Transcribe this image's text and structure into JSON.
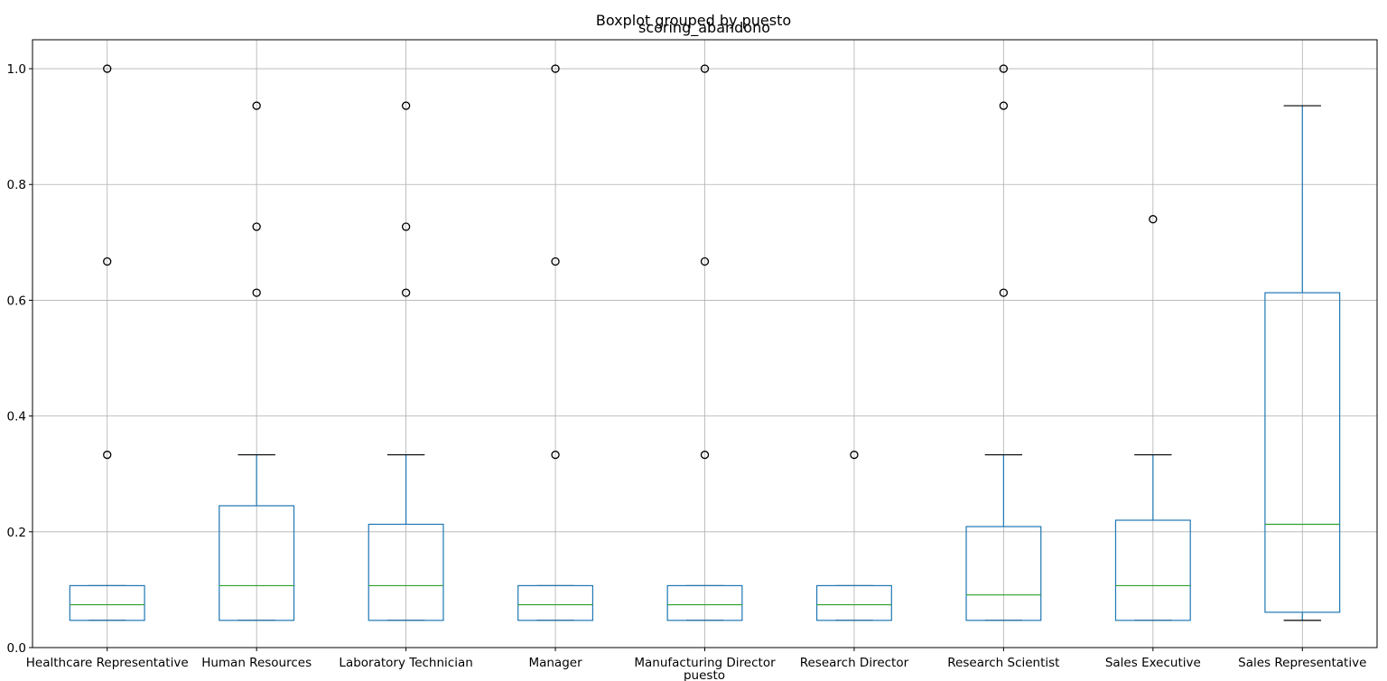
{
  "chart_data": {
    "type": "box",
    "title": "Boxplot grouped by puesto",
    "subtitle": "scoring_abandono",
    "xlabel": "puesto",
    "ylabel": "",
    "ylim": [
      0.0,
      1.05
    ],
    "yticks": [
      "0.0",
      "0.2",
      "0.4",
      "0.6",
      "0.8",
      "1.0"
    ],
    "grid": true,
    "colors": {
      "box": "#1f77b4",
      "median": "#2ca02c",
      "whisker_cap": "#000000",
      "grid": "#b0b0b0",
      "flier": "#000000"
    },
    "categories": [
      "Healthcare Representative",
      "Human Resources",
      "Laboratory Technician",
      "Manager",
      "Manufacturing Director",
      "Research Director",
      "Research Scientist",
      "Sales Executive",
      "Sales Representative"
    ],
    "boxes": [
      {
        "whislo": 0.047,
        "q1": 0.047,
        "med": 0.074,
        "q3": 0.107,
        "whishi": 0.107,
        "fliers": [
          0.333,
          0.667,
          1.0
        ]
      },
      {
        "whislo": 0.047,
        "q1": 0.047,
        "med": 0.107,
        "q3": 0.245,
        "whishi": 0.333,
        "fliers": [
          0.613,
          0.727,
          0.936
        ]
      },
      {
        "whislo": 0.047,
        "q1": 0.047,
        "med": 0.107,
        "q3": 0.213,
        "whishi": 0.333,
        "fliers": [
          0.613,
          0.727,
          0.936
        ]
      },
      {
        "whislo": 0.047,
        "q1": 0.047,
        "med": 0.074,
        "q3": 0.107,
        "whishi": 0.107,
        "fliers": [
          0.333,
          0.667,
          1.0
        ]
      },
      {
        "whislo": 0.047,
        "q1": 0.047,
        "med": 0.074,
        "q3": 0.107,
        "whishi": 0.107,
        "fliers": [
          0.333,
          0.667,
          1.0
        ]
      },
      {
        "whislo": 0.047,
        "q1": 0.047,
        "med": 0.074,
        "q3": 0.107,
        "whishi": 0.107,
        "fliers": [
          0.333
        ]
      },
      {
        "whislo": 0.047,
        "q1": 0.047,
        "med": 0.091,
        "q3": 0.209,
        "whishi": 0.333,
        "fliers": [
          0.613,
          0.936,
          1.0
        ]
      },
      {
        "whislo": 0.047,
        "q1": 0.047,
        "med": 0.107,
        "q3": 0.22,
        "whishi": 0.333,
        "fliers": [
          0.74
        ]
      },
      {
        "whislo": 0.047,
        "q1": 0.061,
        "med": 0.213,
        "q3": 0.613,
        "whishi": 0.936,
        "fliers": []
      }
    ]
  }
}
